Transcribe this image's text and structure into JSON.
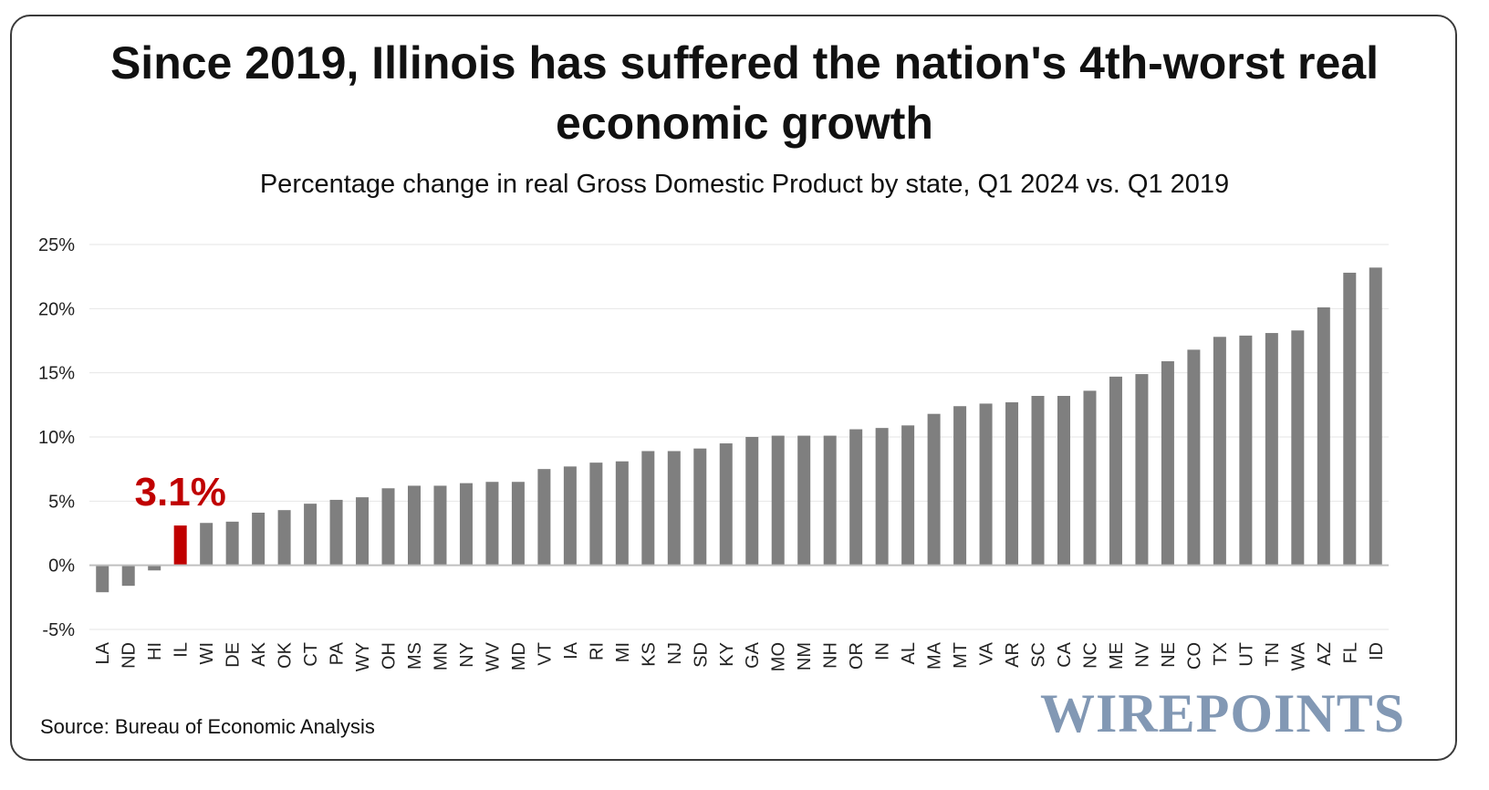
{
  "title": "Since 2019, Illinois has suffered the nation's 4th-worst real economic growth",
  "subtitle": "Percentage change in real Gross Domestic Product by state, Q1 2024 vs. Q1 2019",
  "source": "Source: Bureau of Economic Analysis",
  "logo_text": "WIREPOINTS",
  "colors": {
    "bar": "#7f7f7f",
    "highlight": "#c00000",
    "grid": "#e6e6e6",
    "axis": "#bfbfbf"
  },
  "chart_data": {
    "type": "bar",
    "categories": [
      "LA",
      "ND",
      "HI",
      "IL",
      "WI",
      "DE",
      "AK",
      "OK",
      "CT",
      "PA",
      "WY",
      "OH",
      "MS",
      "MN",
      "NY",
      "WV",
      "MD",
      "VT",
      "IA",
      "RI",
      "MI",
      "KS",
      "NJ",
      "SD",
      "KY",
      "GA",
      "MO",
      "NM",
      "NH",
      "OR",
      "IN",
      "AL",
      "MA",
      "MT",
      "VA",
      "AR",
      "SC",
      "CA",
      "NC",
      "ME",
      "NV",
      "NE",
      "CO",
      "TX",
      "UT",
      "TN",
      "WA",
      "AZ",
      "FL",
      "ID"
    ],
    "values": [
      -2.1,
      -1.6,
      -0.4,
      3.1,
      3.3,
      3.4,
      4.1,
      4.3,
      4.8,
      5.1,
      5.3,
      6.0,
      6.2,
      6.2,
      6.4,
      6.5,
      6.5,
      7.5,
      7.7,
      8.0,
      8.1,
      8.9,
      8.9,
      9.1,
      9.5,
      10.0,
      10.1,
      10.1,
      10.1,
      10.6,
      10.7,
      10.9,
      11.8,
      12.4,
      12.6,
      12.7,
      13.2,
      13.2,
      13.6,
      14.7,
      14.9,
      15.9,
      16.8,
      17.8,
      17.9,
      18.1,
      18.3,
      20.1,
      22.8,
      23.2
    ],
    "highlight": {
      "category": "IL",
      "label": "3.1%"
    },
    "ylim": [
      -5,
      25
    ],
    "yticks": [
      -5,
      0,
      5,
      10,
      15,
      20,
      25
    ],
    "ytick_labels": [
      "-5%",
      "0%",
      "5%",
      "10%",
      "15%",
      "20%",
      "25%"
    ],
    "grid": true,
    "xlabel": "",
    "ylabel": ""
  }
}
